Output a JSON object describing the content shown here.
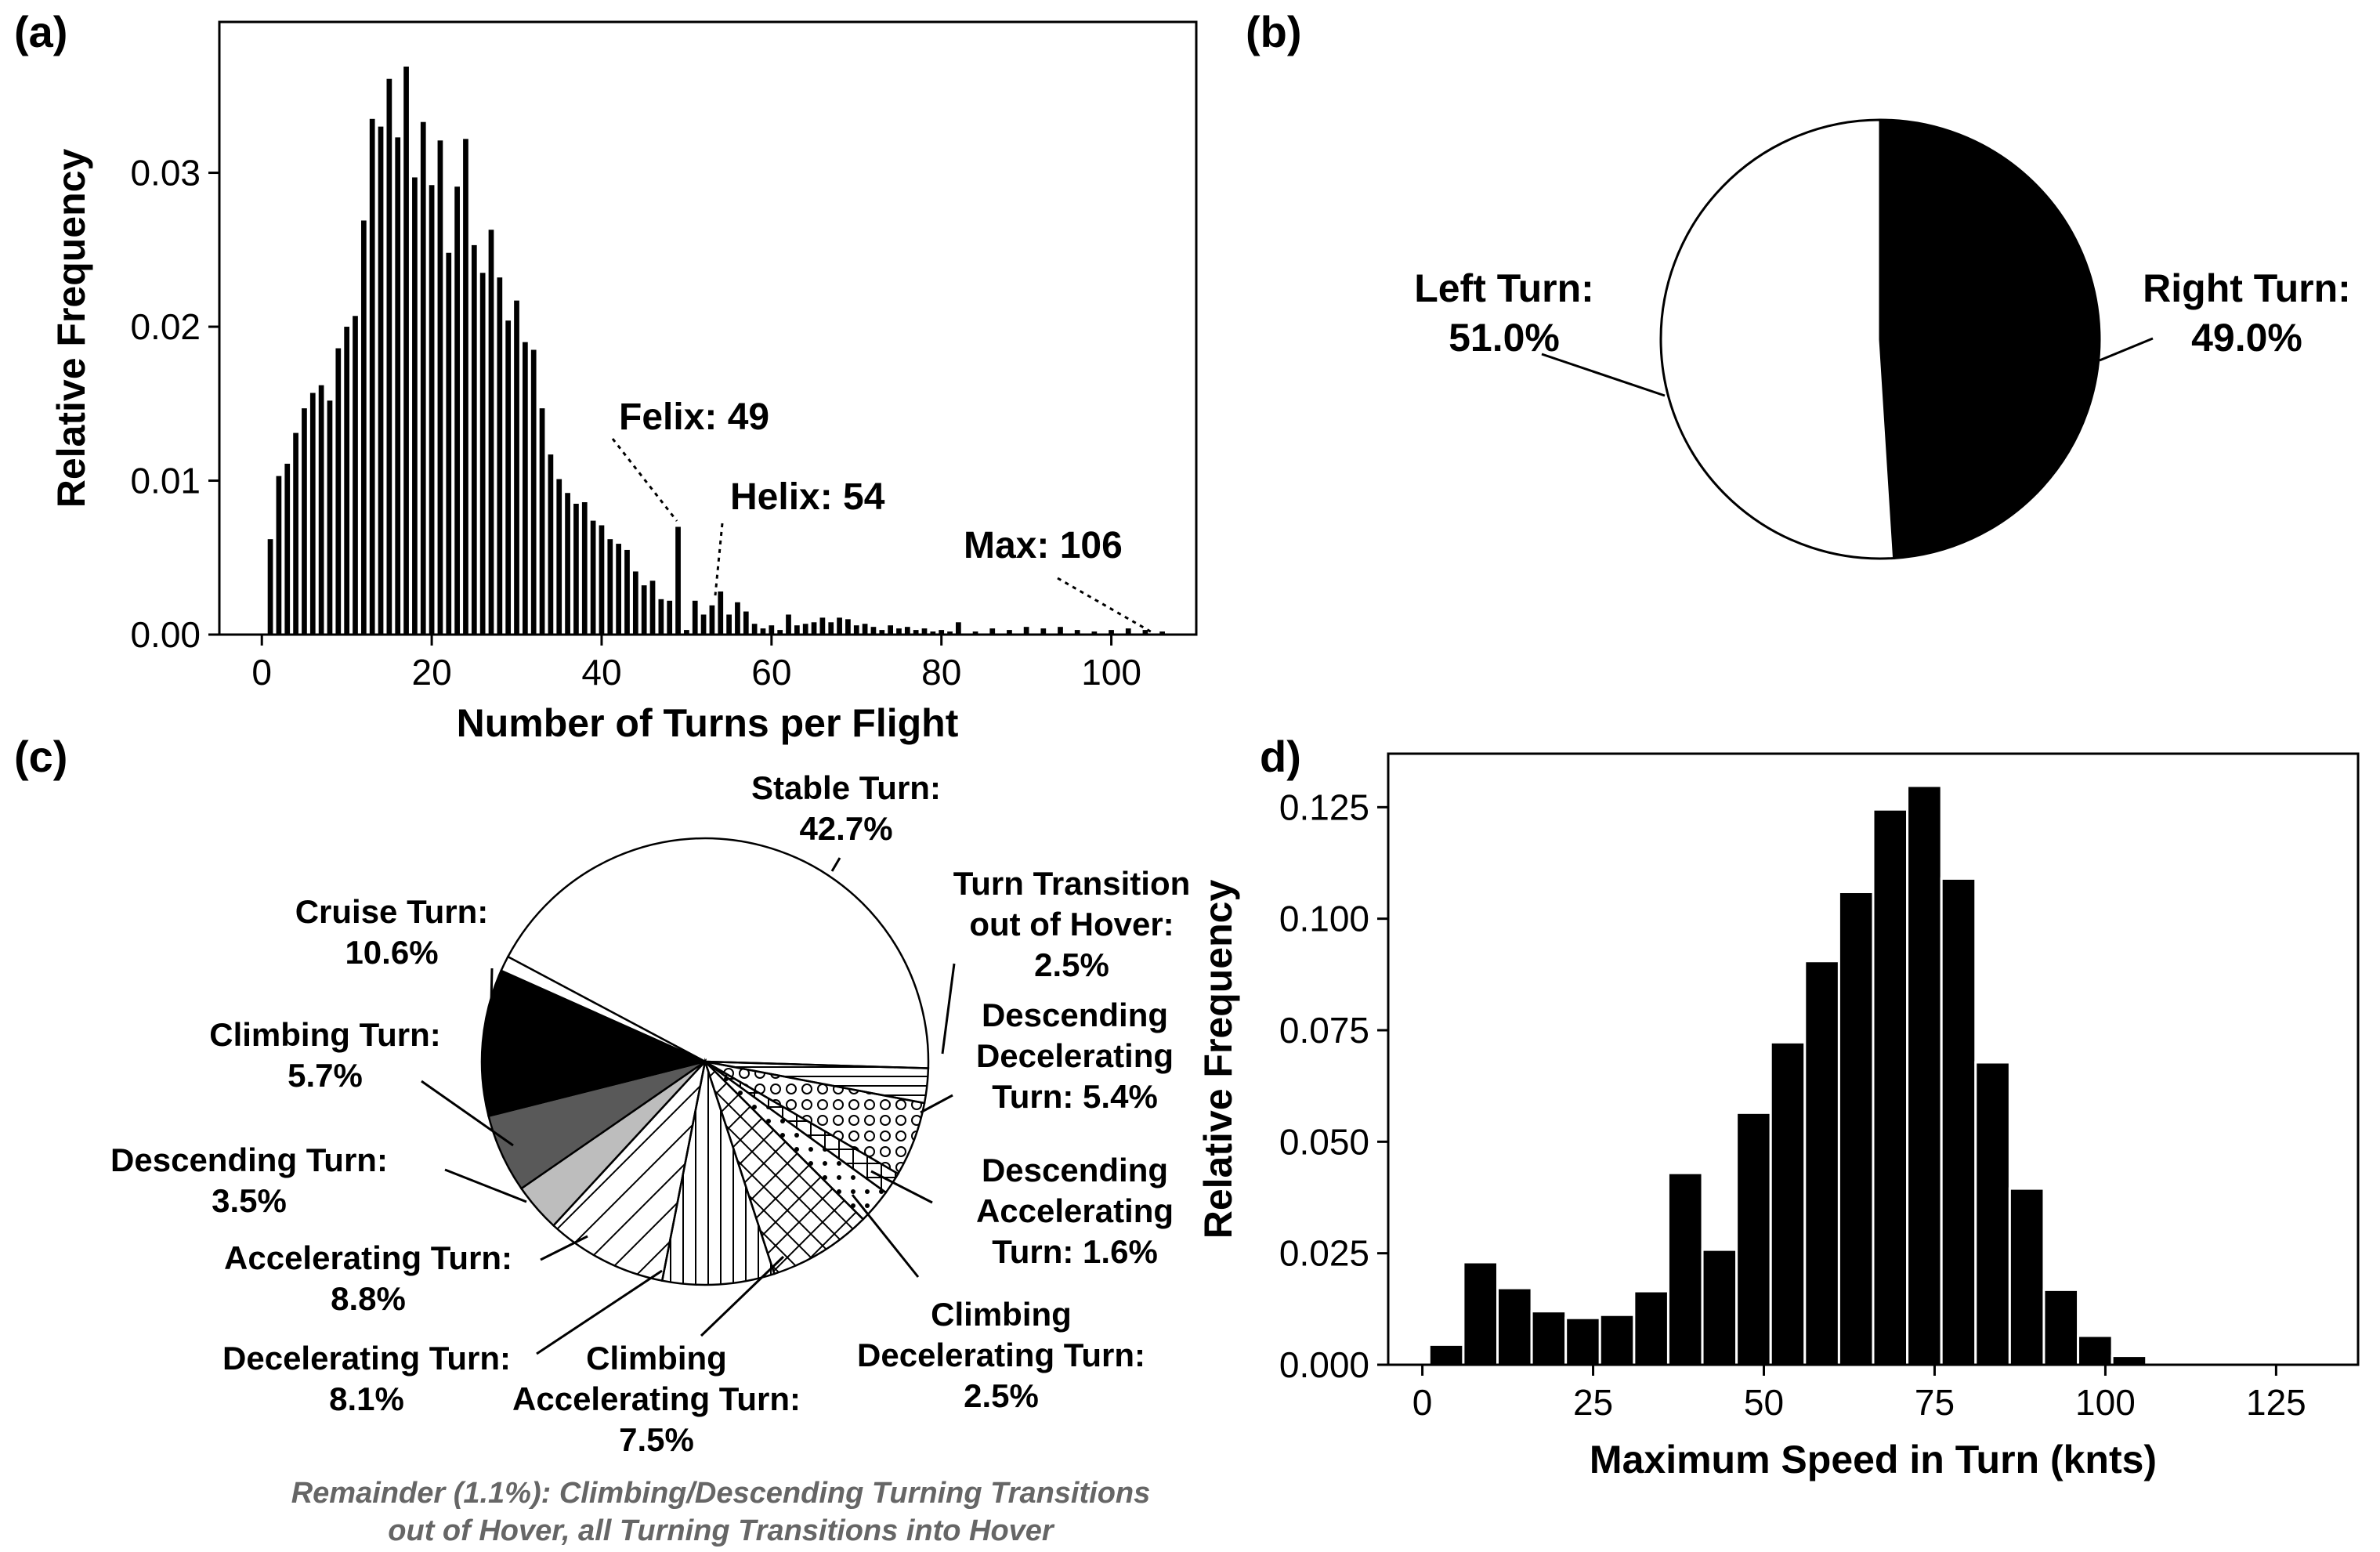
{
  "chart_data": [
    {
      "panel": "(a)",
      "type": "bar",
      "xlabel": "Number of Turns per Flight",
      "ylabel": "Relative Frequency",
      "xlim": [
        -5,
        110
      ],
      "ylim": [
        0,
        0.0398
      ],
      "xticks": [
        "0",
        "20",
        "40",
        "60",
        "80",
        "100"
      ],
      "yticks": [
        "0.00",
        "0.01",
        "0.02",
        "0.03"
      ],
      "x": [
        1,
        2,
        3,
        4,
        5,
        6,
        7,
        8,
        9,
        10,
        11,
        12,
        13,
        14,
        15,
        16,
        17,
        18,
        19,
        20,
        21,
        22,
        23,
        24,
        25,
        26,
        27,
        28,
        29,
        30,
        31,
        32,
        33,
        34,
        35,
        36,
        37,
        38,
        39,
        40,
        41,
        42,
        43,
        44,
        45,
        46,
        47,
        48,
        49,
        50,
        51,
        52,
        53,
        54,
        55,
        56,
        57,
        58,
        59,
        60,
        61,
        62,
        63,
        64,
        65,
        66,
        67,
        68,
        69,
        70,
        71,
        72,
        73,
        74,
        75,
        76,
        77,
        78,
        79,
        80,
        81,
        82,
        84,
        86,
        88,
        90,
        92,
        94,
        96,
        98,
        100,
        102,
        104,
        106
      ],
      "values": [
        0.0062,
        0.0103,
        0.0111,
        0.0131,
        0.0147,
        0.0157,
        0.0162,
        0.0152,
        0.0186,
        0.02,
        0.0207,
        0.0269,
        0.0335,
        0.033,
        0.0361,
        0.0323,
        0.0369,
        0.0297,
        0.0333,
        0.0292,
        0.0321,
        0.0248,
        0.0291,
        0.0322,
        0.0253,
        0.0235,
        0.0263,
        0.0232,
        0.0204,
        0.0217,
        0.019,
        0.0185,
        0.0147,
        0.0117,
        0.0101,
        0.0092,
        0.0085,
        0.0086,
        0.0074,
        0.0071,
        0.0062,
        0.0059,
        0.0055,
        0.0041,
        0.0032,
        0.0035,
        0.0023,
        0.0022,
        0.007,
        0.0003,
        0.0022,
        0.0013,
        0.0019,
        0.0028,
        0.0013,
        0.0021,
        0.0015,
        0.0007,
        0.0004,
        0.0006,
        0.0003,
        0.0013,
        0.0006,
        0.0007,
        0.0008,
        0.0011,
        0.0008,
        0.0011,
        0.001,
        0.0006,
        0.0007,
        0.0005,
        0.0003,
        0.0006,
        0.0004,
        0.0005,
        0.0003,
        0.0004,
        0.0002,
        0.0003,
        0.0002,
        0.0008,
        0.0002,
        0.0004,
        0.0003,
        0.0005,
        0.0004,
        0.0005,
        0.0003,
        0.0002,
        0.0003,
        0.0004,
        0.0003,
        0.0002
      ],
      "annotations": [
        {
          "text": "Felix: 49",
          "x": 49
        },
        {
          "text": "Helix: 54",
          "x": 54
        },
        {
          "text": "Max: 106",
          "x": 106
        }
      ]
    },
    {
      "panel": "(b)",
      "type": "pie",
      "slices": [
        {
          "label": "Left Turn:",
          "value_text": "51.0%",
          "value": 51.0,
          "color": "#ffffff"
        },
        {
          "label": "Right Turn:",
          "value_text": "49.0%",
          "value": 49.0,
          "color": "#000000"
        }
      ]
    },
    {
      "panel": "(c)",
      "type": "pie",
      "slices": [
        {
          "label": "Stable Turn:",
          "value_text": "42.7%",
          "value": 42.7,
          "fill": "white"
        },
        {
          "label": "Turn Transition out of Hover:",
          "value_text": "2.5%",
          "value": 2.5,
          "fill": "hlines"
        },
        {
          "label": "Descending Decelerating Turn:",
          "value_text": "5.4%",
          "value": 5.4,
          "fill": "circles"
        },
        {
          "label": "Descending Accelerating Turn:",
          "value_text": "1.6%",
          "value": 1.6,
          "fill": "grid"
        },
        {
          "label": "Climbing Decelerating Turn:",
          "value_text": "2.5%",
          "value": 2.5,
          "fill": "dots"
        },
        {
          "label": "Climbing Accelerating Turn:",
          "value_text": "7.5%",
          "value": 7.5,
          "fill": "crosshatch"
        },
        {
          "label": "Decelerating Turn:",
          "value_text": "8.1%",
          "value": 8.1,
          "fill": "vlines"
        },
        {
          "label": "Accelerating Turn:",
          "value_text": "8.8%",
          "value": 8.8,
          "fill": "diag"
        },
        {
          "label": "Descending Turn:",
          "value_text": "3.5%",
          "value": 3.5,
          "fill": "#bdbdbd"
        },
        {
          "label": "Climbing Turn:",
          "value_text": "5.7%",
          "value": 5.7,
          "fill": "#595959"
        },
        {
          "label": "Cruise Turn:",
          "value_text": "10.6%",
          "value": 10.6,
          "fill": "#000000"
        },
        {
          "label": "Remainder",
          "value_text": "1.1%",
          "value": 1.1,
          "fill": "white"
        }
      ],
      "remainder_note": [
        "Remainder (1.1%): Climbing/Descending Turning Transitions",
        "out of Hover, all Turning Transitions into Hover"
      ]
    },
    {
      "panel": "d)",
      "type": "bar",
      "xlabel": "Maximum Speed in Turn (knts)",
      "ylabel": "Relative Frequency",
      "xlim": [
        -5,
        137
      ],
      "ylim": [
        0,
        0.137
      ],
      "xticks": [
        "0",
        "25",
        "50",
        "75",
        "100",
        "125"
      ],
      "yticks": [
        "0.000",
        "0.025",
        "0.050",
        "0.075",
        "0.100",
        "0.125"
      ],
      "bin_width": 5,
      "bin_starts": [
        1,
        6,
        11,
        16,
        21,
        26,
        31,
        36,
        41,
        46,
        51,
        56,
        61,
        66,
        71,
        76,
        81,
        86,
        91,
        96,
        101,
        106,
        111
      ],
      "values": [
        0.0045,
        0.023,
        0.0172,
        0.012,
        0.0105,
        0.0112,
        0.0165,
        0.043,
        0.0258,
        0.0565,
        0.0723,
        0.0905,
        0.106,
        0.1245,
        0.1298,
        0.109,
        0.0678,
        0.0395,
        0.0168,
        0.0065,
        0.002,
        0.0,
        0.0
      ]
    }
  ]
}
